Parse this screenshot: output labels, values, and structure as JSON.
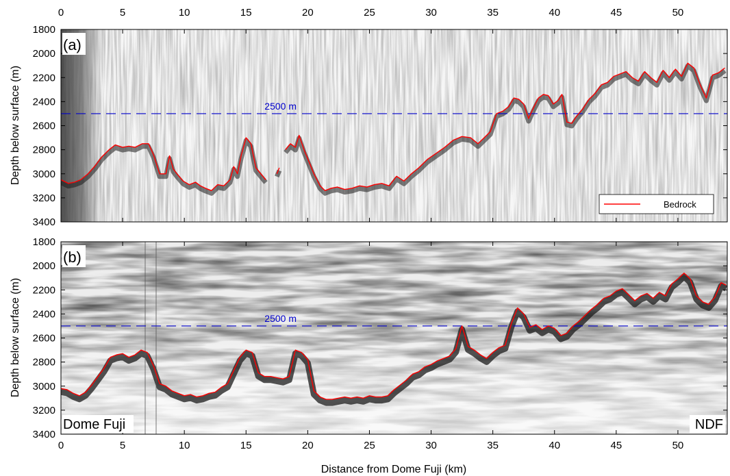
{
  "figure": {
    "xlabel": "Distance from Dome Fuji (km)",
    "top_ticks_shown": true
  },
  "colors": {
    "bedrock": "#ff0000",
    "reference_line": "#0000cc",
    "radargram_dark": "#111111",
    "radargram_light": "#f4f4f4"
  },
  "chart_data": [
    {
      "type": "line",
      "panel_label": "(a)",
      "xlabel": "",
      "ylabel": "Depth below surface (m)",
      "xlim": [
        0,
        54
      ],
      "ylim": [
        1800,
        3400
      ],
      "y_reversed": true,
      "xticks": [
        0,
        5,
        10,
        15,
        20,
        25,
        30,
        35,
        40,
        45,
        50
      ],
      "yticks": [
        1800,
        2000,
        2200,
        2400,
        2600,
        2800,
        3000,
        3200,
        3400
      ],
      "grid": false,
      "legend": {
        "position": "bottom-right",
        "entries": [
          "Bedrock"
        ]
      },
      "reference_line": {
        "y": 2500,
        "label": "2500 m",
        "label_x": 16.5,
        "style": "dashed"
      },
      "series": [
        {
          "name": "Bedrock",
          "segments": [
            {
              "x": [
                0,
                0.6,
                1.1,
                1.6,
                2.2,
                2.8,
                3.3,
                3.9,
                4.4,
                5.0,
                5.5,
                6.0,
                6.6,
                7.1,
                7.5,
                8.0,
                8.5,
                8.8,
                9.1,
                9.4,
                9.9,
                10.4,
                10.9,
                11.3,
                11.7,
                12.2,
                12.7,
                13.2,
                13.7,
                14.0,
                14.3,
                14.6,
                15.0,
                15.4,
                15.8,
                16.2,
                16.6
              ],
              "y": [
                3050,
                3080,
                3070,
                3050,
                3000,
                2930,
                2860,
                2800,
                2760,
                2780,
                2770,
                2780,
                2750,
                2750,
                2840,
                3000,
                3000,
                2850,
                2960,
                3000,
                3060,
                3090,
                3070,
                3100,
                3120,
                3140,
                3090,
                3100,
                3050,
                2940,
                3000,
                2850,
                2700,
                2750,
                2950,
                3000,
                3050
              ]
            },
            {
              "x": [
                17.5,
                17.7
              ],
              "y": [
                3000,
                2950
              ]
            },
            {
              "x": [
                18.2,
                18.6,
                19.0,
                19.3,
                19.7,
                20.1,
                20.5,
                21.0,
                21.4,
                21.9,
                22.4,
                23.0,
                23.6,
                24.2,
                24.8,
                25.4,
                26.0,
                26.6,
                27.2,
                27.8,
                28.4,
                29.0,
                29.7,
                30.4,
                31.1,
                31.8,
                32.5,
                33.2,
                33.8,
                34.3,
                34.8,
                35.3,
                35.8,
                36.3,
                36.7,
                37.1,
                37.5,
                37.9,
                38.3,
                38.7,
                39.1,
                39.5,
                39.9,
                40.3,
                40.6,
                41.0,
                41.4,
                41.8,
                42.3,
                42.8,
                43.3,
                43.8,
                44.3,
                44.8,
                45.3,
                45.8,
                46.3,
                46.8,
                47.3,
                47.8,
                48.3,
                48.8,
                49.3,
                49.8,
                50.3,
                50.8,
                51.3,
                51.8,
                52.3,
                52.8,
                53.3,
                53.8
              ],
              "y": [
                2800,
                2750,
                2780,
                2680,
                2800,
                2900,
                3000,
                3100,
                3140,
                3120,
                3110,
                3130,
                3120,
                3100,
                3110,
                3090,
                3080,
                3100,
                3020,
                3060,
                3000,
                2950,
                2880,
                2830,
                2780,
                2720,
                2690,
                2700,
                2750,
                2700,
                2650,
                2500,
                2480,
                2440,
                2370,
                2380,
                2420,
                2540,
                2450,
                2370,
                2340,
                2350,
                2420,
                2390,
                2340,
                2570,
                2580,
                2520,
                2460,
                2380,
                2330,
                2260,
                2240,
                2190,
                2170,
                2150,
                2200,
                2230,
                2150,
                2200,
                2240,
                2140,
                2200,
                2130,
                2190,
                2080,
                2120,
                2260,
                2370,
                2180,
                2160,
                2120
              ]
            }
          ]
        }
      ]
    },
    {
      "type": "line",
      "panel_label": "(b)",
      "xlabel": "Distance from Dome Fuji (km)",
      "ylabel": "Depth below surface (m)",
      "xlim": [
        0,
        54
      ],
      "ylim": [
        1800,
        3400
      ],
      "y_reversed": true,
      "xticks": [
        0,
        5,
        10,
        15,
        20,
        25,
        30,
        35,
        40,
        45,
        50
      ],
      "yticks": [
        1800,
        2000,
        2200,
        2400,
        2600,
        2800,
        3000,
        3200,
        3400
      ],
      "grid": false,
      "reference_line": {
        "y": 2500,
        "label": "2500 m",
        "label_x": 16.5,
        "style": "dashed"
      },
      "annotations": [
        {
          "text": "Dome Fuji",
          "position": "bottom-left"
        },
        {
          "text": "NDF",
          "position": "bottom-right"
        }
      ],
      "series": [
        {
          "name": "Bedrock",
          "segments": [
            {
              "x": [
                0,
                0.5,
                1.0,
                1.5,
                2.0,
                2.5,
                3.0,
                3.5,
                4.0,
                4.5,
                5.0,
                5.5,
                6.0,
                6.5,
                7.0,
                7.5,
                8.0,
                8.5,
                9.0,
                9.5,
                10.0,
                10.5,
                11.0,
                11.5,
                12.0,
                12.5,
                13.0,
                13.5,
                14.0,
                14.5,
                15.0,
                15.5,
                16.0,
                16.5,
                17.0,
                17.5,
                18.0,
                18.5,
                19.0,
                19.5,
                20.0,
                20.5,
                21.0,
                21.5,
                22.0,
                22.5,
                23.0,
                23.5,
                24.0,
                24.5,
                25.0,
                25.5,
                26.0,
                26.5,
                27.0,
                27.5,
                28.0,
                28.5,
                29.0,
                29.5,
                30.0,
                30.5,
                31.0,
                31.5,
                32.0,
                32.5,
                33.0,
                33.5,
                34.0,
                34.5,
                35.0,
                35.5,
                36.0,
                36.5,
                37.0,
                37.5,
                38.0,
                38.5,
                39.0,
                39.5,
                40.0,
                40.5,
                41.0,
                41.5,
                42.0,
                42.5,
                43.0,
                43.5,
                44.0,
                44.5,
                45.0,
                45.5,
                46.0,
                46.5,
                47.0,
                47.5,
                48.0,
                48.5,
                49.0,
                49.5,
                50.0,
                50.5,
                51.0,
                51.5,
                52.0,
                52.5,
                53.0,
                53.5,
                53.9
              ],
              "y": [
                3020,
                3030,
                3060,
                3080,
                3050,
                2990,
                2920,
                2850,
                2760,
                2740,
                2730,
                2760,
                2740,
                2700,
                2720,
                2830,
                2980,
                3000,
                3040,
                3060,
                3080,
                3070,
                3090,
                3080,
                3060,
                3050,
                3010,
                2980,
                2870,
                2760,
                2700,
                2720,
                2890,
                2920,
                2920,
                2930,
                2940,
                2920,
                2700,
                2720,
                2780,
                3040,
                3090,
                3110,
                3110,
                3100,
                3090,
                3100,
                3090,
                3100,
                3080,
                3090,
                3090,
                3080,
                3030,
                2990,
                2950,
                2900,
                2880,
                2840,
                2820,
                2790,
                2770,
                2750,
                2690,
                2500,
                2670,
                2700,
                2740,
                2770,
                2720,
                2680,
                2660,
                2480,
                2350,
                2400,
                2510,
                2490,
                2530,
                2500,
                2520,
                2580,
                2560,
                2500,
                2460,
                2410,
                2360,
                2320,
                2270,
                2250,
                2210,
                2190,
                2240,
                2290,
                2250,
                2230,
                2270,
                2220,
                2250,
                2150,
                2110,
                2060,
                2110,
                2250,
                2300,
                2320,
                2260,
                2140,
                2160
              ]
            }
          ]
        }
      ]
    }
  ]
}
